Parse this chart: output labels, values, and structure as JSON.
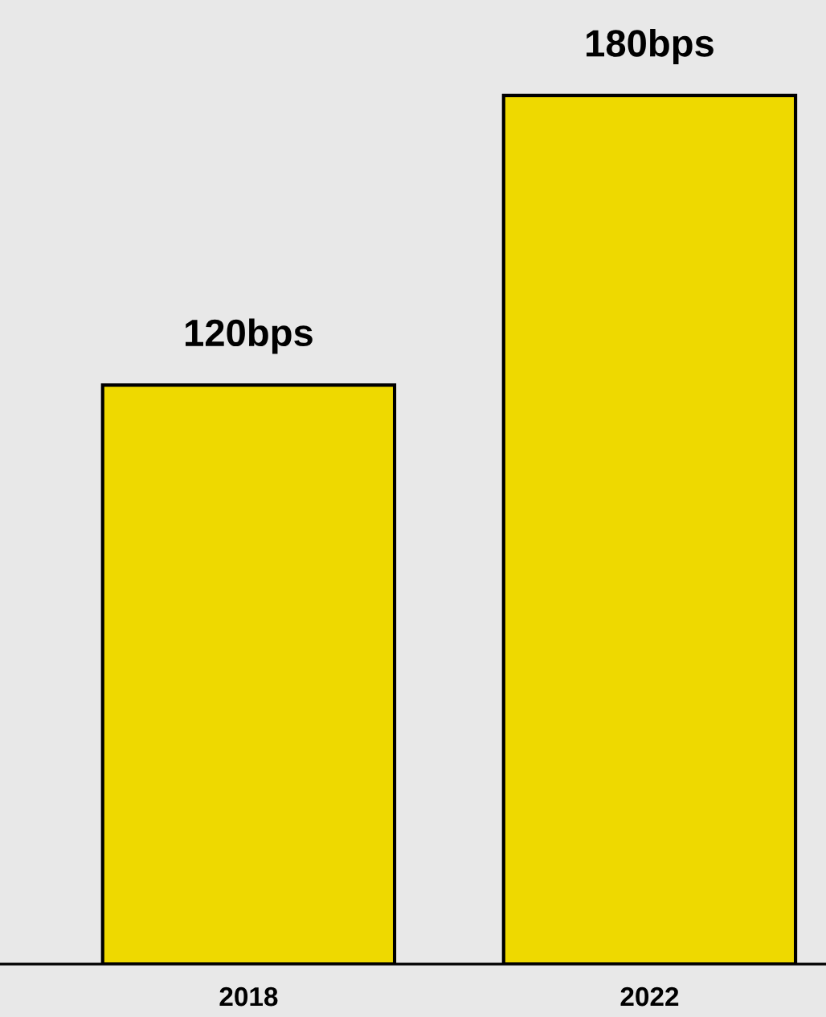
{
  "chart_data": {
    "type": "bar",
    "categories": [
      "2018",
      "2022"
    ],
    "values": [
      120,
      180
    ],
    "value_labels": [
      "120bps",
      "180bps"
    ],
    "color": "#eed900",
    "grid": false,
    "legend": false
  }
}
